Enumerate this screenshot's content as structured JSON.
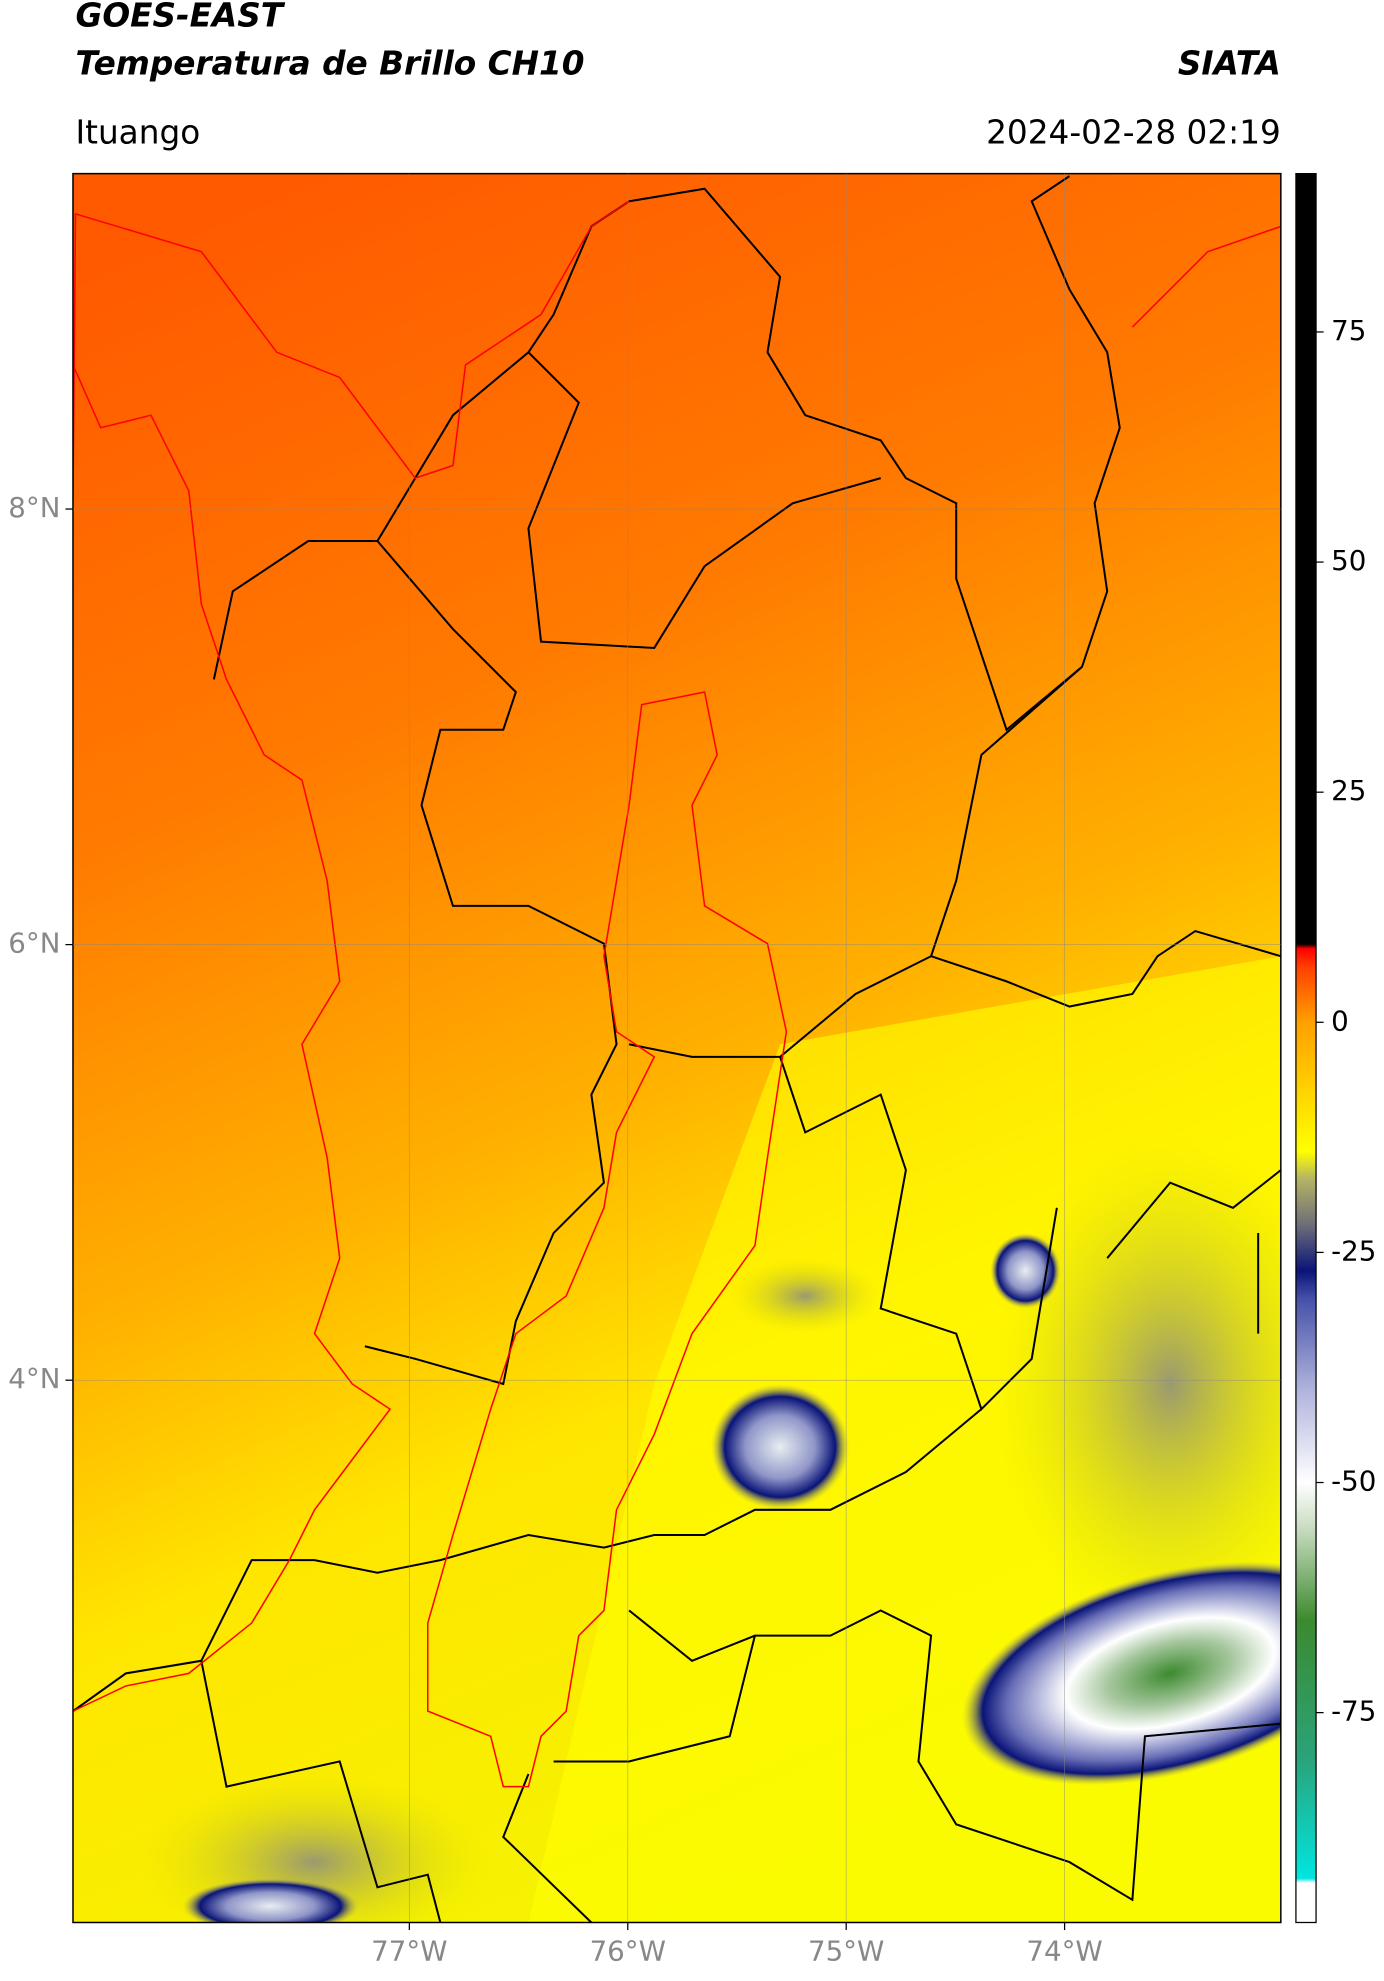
{
  "header": {
    "title": "GOES-EAST",
    "subtitle": "Temperatura de Brillo CH10",
    "brand": "SIATA",
    "location": "Ituango",
    "datetime": "2024-02-28 02:19"
  },
  "map": {
    "xlim": [
      -78.54,
      -73.01
    ],
    "ylim": [
      1.51,
      9.54
    ],
    "xticks": [
      {
        "value": -77,
        "label": "77°W"
      },
      {
        "value": -76,
        "label": "76°W"
      },
      {
        "value": -75,
        "label": "75°W"
      },
      {
        "value": -74,
        "label": "74°W"
      }
    ],
    "yticks": [
      {
        "value": 8,
        "label": "8°N"
      },
      {
        "value": 6,
        "label": "6°N"
      },
      {
        "value": 4,
        "label": "4°N"
      }
    ],
    "grid": true
  },
  "colorbar": {
    "clim": [
      -97.8,
      92.2
    ],
    "ticks": [
      75,
      50,
      25,
      0,
      -25,
      -50,
      -75
    ],
    "stops": [
      [
        -97.8,
        "#ffffff"
      ],
      [
        -93.5,
        "#ffffff"
      ],
      [
        -93,
        "#00e5e0"
      ],
      [
        -80,
        "#2aa37a"
      ],
      [
        -65,
        "#3c8a2e"
      ],
      [
        -55,
        "#c8dcc0"
      ],
      [
        -50,
        "#ffffff"
      ],
      [
        -40,
        "#b0b4dc"
      ],
      [
        -30,
        "#4650a8"
      ],
      [
        -27,
        "#0a1478"
      ],
      [
        -22,
        "#6e6e78"
      ],
      [
        -17,
        "#b4b464"
      ],
      [
        -14,
        "#ffff00"
      ],
      [
        0,
        "#ffa000"
      ],
      [
        6,
        "#ff4000"
      ],
      [
        8,
        "#ff0000"
      ],
      [
        8.5,
        "#000000"
      ],
      [
        92.2,
        "#000000"
      ]
    ]
  }
}
